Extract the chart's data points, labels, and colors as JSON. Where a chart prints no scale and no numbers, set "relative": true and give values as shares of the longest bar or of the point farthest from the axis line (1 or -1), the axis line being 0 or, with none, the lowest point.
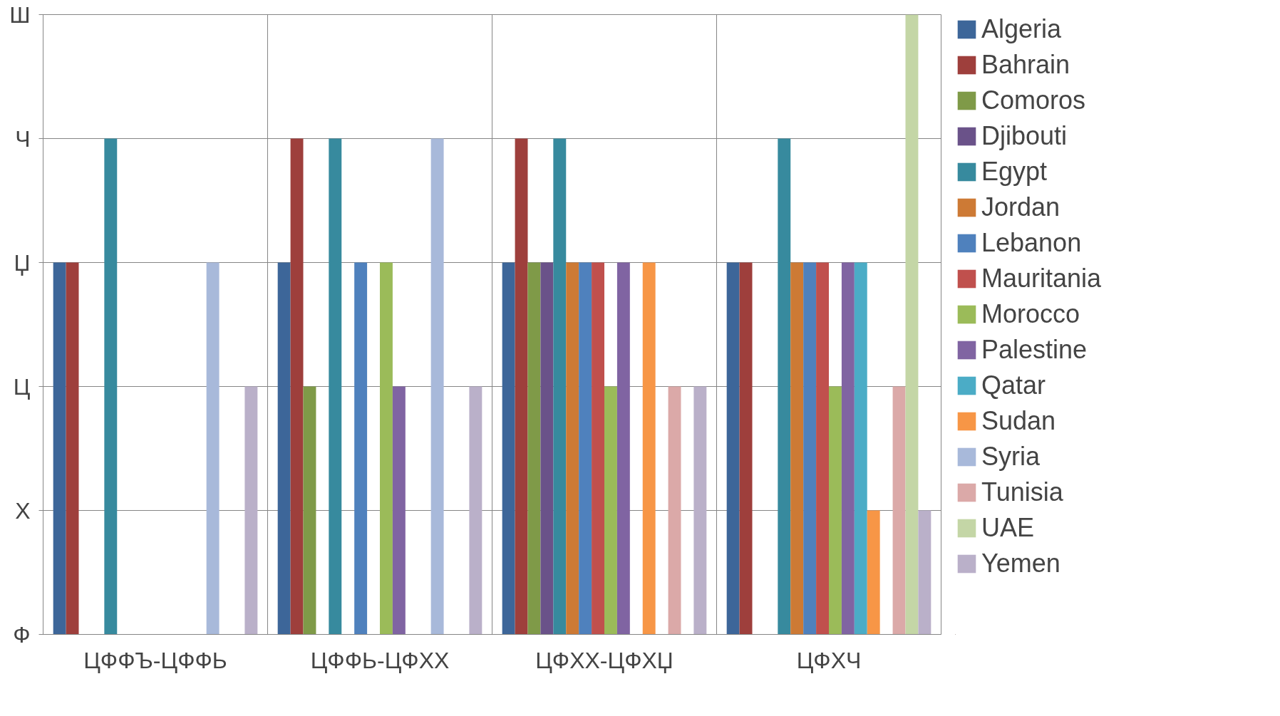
{
  "chart_data": {
    "type": "bar",
    "categories": [
      "ЦФФЪ-ЦФФЬ",
      "ЦФФЬ-ЦФХХ",
      "ЦФХХ-ЦФХЏ",
      "ЦФХЧ"
    ],
    "relative": true,
    "annotations": [
      "Ш",
      "Ч",
      "Џ",
      "Ц",
      "Х",
      "Ф"
    ],
    "grid": true,
    "legend": "right",
    "series": [
      {
        "name": "Algeria",
        "color": "#3d6699",
        "values": [
          0.6,
          0.6,
          0.6,
          0.6
        ]
      },
      {
        "name": "Bahrain",
        "color": "#9e3f3c",
        "values": [
          0.6,
          0.8,
          0.8,
          0.6
        ]
      },
      {
        "name": "Comoros",
        "color": "#7f9a48",
        "values": [
          null,
          0.4,
          0.6,
          null
        ]
      },
      {
        "name": "Djibouti",
        "color": "#6a5289",
        "values": [
          null,
          null,
          0.6,
          null
        ]
      },
      {
        "name": "Egypt",
        "color": "#378a9e",
        "values": [
          0.8,
          0.8,
          0.8,
          0.8
        ]
      },
      {
        "name": "Jordan",
        "color": "#cd7a35",
        "values": [
          null,
          null,
          0.6,
          0.6
        ]
      },
      {
        "name": "Lebanon",
        "color": "#4f81bd",
        "values": [
          null,
          0.6,
          0.6,
          0.6
        ]
      },
      {
        "name": "Mauritania",
        "color": "#c0504d",
        "values": [
          null,
          null,
          0.6,
          0.6
        ]
      },
      {
        "name": "Morocco",
        "color": "#9bbb59",
        "values": [
          null,
          0.6,
          0.4,
          0.4
        ]
      },
      {
        "name": "Palestine",
        "color": "#8064a2",
        "values": [
          null,
          0.4,
          0.6,
          0.6
        ]
      },
      {
        "name": "Qatar",
        "color": "#4bacc6",
        "values": [
          null,
          null,
          null,
          0.6
        ]
      },
      {
        "name": "Sudan",
        "color": "#f79646",
        "values": [
          null,
          null,
          0.6,
          0.2
        ]
      },
      {
        "name": "Syria",
        "color": "#a8b9da",
        "values": [
          0.6,
          0.8,
          null,
          null
        ]
      },
      {
        "name": "Tunisia",
        "color": "#dba9a8",
        "values": [
          null,
          null,
          0.4,
          0.4
        ]
      },
      {
        "name": "UAE",
        "color": "#c4d6a6",
        "values": [
          null,
          null,
          null,
          1
        ]
      },
      {
        "name": "Yemen",
        "color": "#bab0c9",
        "values": [
          0.4,
          0.4,
          0.4,
          0.2
        ]
      }
    ]
  }
}
